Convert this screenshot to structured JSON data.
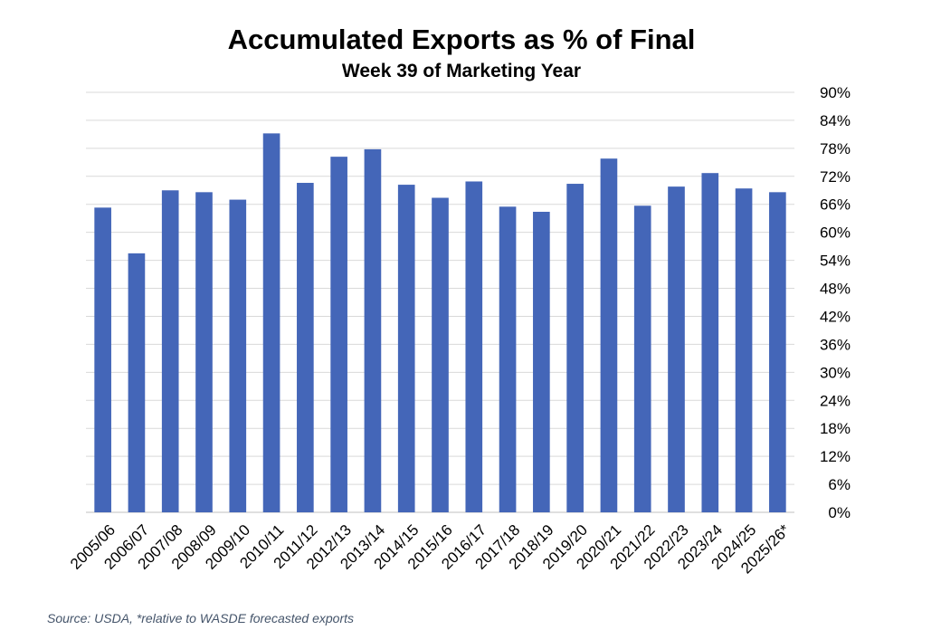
{
  "chart_data": {
    "type": "bar",
    "title": "Accumulated Exports as % of Final",
    "subtitle": "Week 39 of Marketing Year",
    "categories": [
      "2005/06",
      "2006/07",
      "2007/08",
      "2008/09",
      "2009/10",
      "2010/11",
      "2011/12",
      "2012/13",
      "2013/14",
      "2014/15",
      "2015/16",
      "2016/17",
      "2017/18",
      "2018/19",
      "2019/20",
      "2020/21",
      "2021/22",
      "2022/23",
      "2023/24",
      "2024/25",
      "2025/26*"
    ],
    "values": [
      65.3,
      55.5,
      69.0,
      68.6,
      67.0,
      81.2,
      70.6,
      76.2,
      77.8,
      70.2,
      67.4,
      70.9,
      65.5,
      64.4,
      70.4,
      75.8,
      65.7,
      69.8,
      72.7,
      69.4,
      68.6
    ],
    "ylim": [
      0,
      90
    ],
    "yticks": [
      "0%",
      "6%",
      "12%",
      "18%",
      "24%",
      "30%",
      "36%",
      "42%",
      "48%",
      "54%",
      "60%",
      "66%",
      "72%",
      "78%",
      "84%",
      "90%"
    ],
    "ytick_values": [
      0,
      6,
      12,
      18,
      24,
      30,
      36,
      42,
      48,
      54,
      60,
      66,
      72,
      78,
      84,
      90
    ],
    "y_axis_side": "right",
    "grid": true,
    "bar_color": "#4466b8",
    "grid_color": "#d9d9d9"
  },
  "source_note": "Source: USDA, *relative to WASDE forecasted exports"
}
